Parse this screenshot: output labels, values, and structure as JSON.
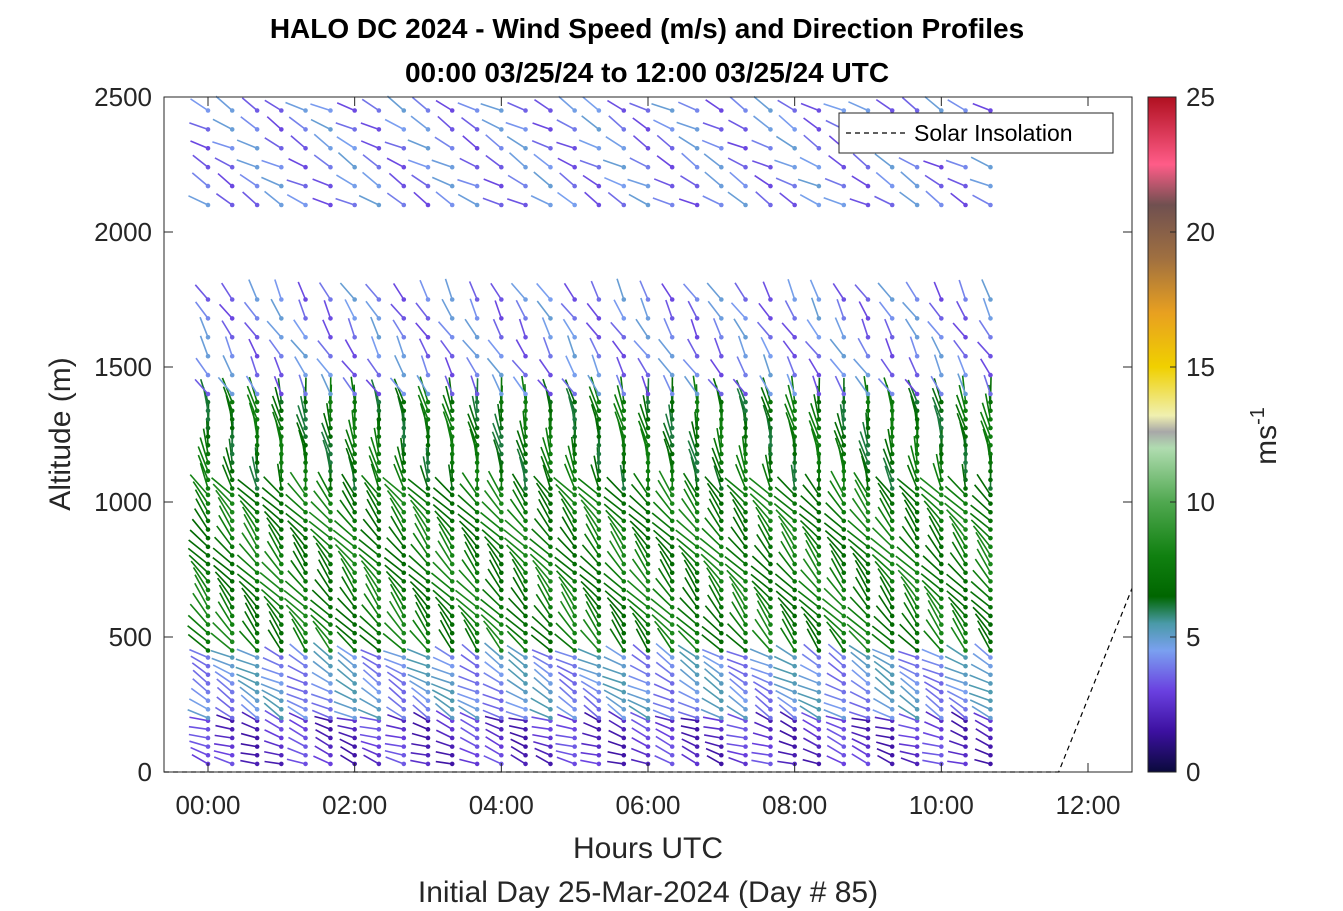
{
  "chart_data": {
    "type": "wind-barb-profile",
    "title_line1": "HALO DC 2024 - Wind Speed (m/s) and Direction Profiles",
    "title_line2": "00:00 03/25/24 to 12:00 03/25/24  UTC",
    "xlabel": "Hours UTC",
    "xlabel2": "Initial Day 25-Mar-2024 (Day # 85)",
    "ylabel": "Altitude (m)",
    "x_ticks": [
      "00:00",
      "02:00",
      "04:00",
      "06:00",
      "08:00",
      "10:00",
      "12:00"
    ],
    "x_tick_hours": [
      0,
      2,
      4,
      6,
      8,
      10,
      12
    ],
    "xlim_hours": [
      -0.6,
      12.6
    ],
    "y_ticks": [
      "0",
      "500",
      "1000",
      "1500",
      "2000",
      "2500"
    ],
    "y_tick_values": [
      0,
      500,
      1000,
      1500,
      2000,
      2500
    ],
    "ylim": [
      0,
      2500
    ],
    "grid": false,
    "colorbar": {
      "label": "ms",
      "label_superscript": "-1",
      "ticks": [
        "0",
        "5",
        "10",
        "15",
        "20",
        "25"
      ],
      "tick_values": [
        0,
        5,
        10,
        15,
        20,
        25
      ],
      "range": [
        0,
        25
      ],
      "stops": [
        {
          "v": 0,
          "c": "#0a0a3c"
        },
        {
          "v": 1.5,
          "c": "#3c10a0"
        },
        {
          "v": 3,
          "c": "#6a40e0"
        },
        {
          "v": 4.5,
          "c": "#7aa0f0"
        },
        {
          "v": 5.5,
          "c": "#4a9aa8"
        },
        {
          "v": 6.5,
          "c": "#006600"
        },
        {
          "v": 8,
          "c": "#108010"
        },
        {
          "v": 10,
          "c": "#50a850"
        },
        {
          "v": 12,
          "c": "#b0dcb0"
        },
        {
          "v": 12.6,
          "c": "#a8a8a8"
        },
        {
          "v": 13.2,
          "c": "#f0f0b0"
        },
        {
          "v": 15,
          "c": "#f0d000"
        },
        {
          "v": 17,
          "c": "#e8a020"
        },
        {
          "v": 19,
          "c": "#a07040"
        },
        {
          "v": 21,
          "c": "#705050"
        },
        {
          "v": 22.5,
          "c": "#ff5c88"
        },
        {
          "v": 25,
          "c": "#b01020"
        }
      ]
    },
    "legend": {
      "entries": [
        "Solar Insolation"
      ],
      "placement": "top-right",
      "style": "dashed-black"
    },
    "series": [
      {
        "name": "Solar Insolation",
        "type": "line",
        "x_hours": [
          -0.6,
          11.6,
          12.6
        ],
        "y": [
          0,
          0,
          680
        ]
      }
    ],
    "barb_profile_times_hours": [
      0.0,
      0.33,
      0.67,
      1.0,
      1.33,
      1.67,
      2.0,
      2.33,
      2.67,
      3.0,
      3.33,
      3.67,
      4.0,
      4.33,
      4.67,
      5.0,
      5.33,
      5.67,
      6.0,
      6.33,
      6.67,
      7.0,
      7.33,
      7.67,
      8.0,
      8.33,
      8.67,
      9.0,
      9.33,
      9.67,
      10.0,
      10.33,
      10.67
    ],
    "barb_layers": [
      {
        "z_from": 30,
        "z_to": 200,
        "speed": 2.5,
        "dir_deg": 290,
        "note": "near-surface"
      },
      {
        "z_from": 200,
        "z_to": 450,
        "speed": 4.5,
        "dir_deg": 300
      },
      {
        "z_from": 450,
        "z_to": 1050,
        "speed": 7.5,
        "dir_deg": 320
      },
      {
        "z_from": 1050,
        "z_to": 1400,
        "speed": 7,
        "dir_deg": 350
      },
      {
        "z_from": 1400,
        "z_to": 1800,
        "speed": 4,
        "dir_deg": 330
      },
      {
        "z_from": 2100,
        "z_to": 2500,
        "speed": 4,
        "dir_deg": 300
      }
    ]
  }
}
